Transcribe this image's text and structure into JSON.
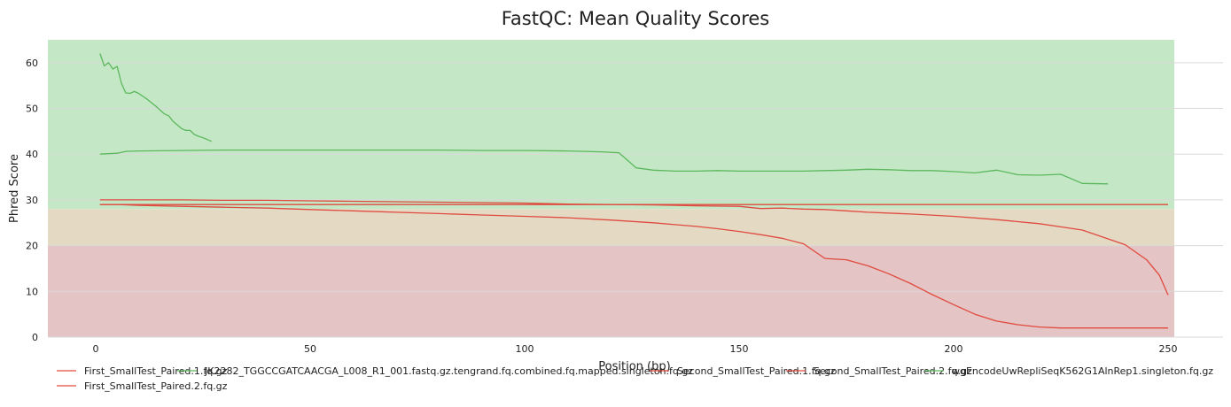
{
  "chart_data": {
    "type": "line",
    "title": "FastQC: Mean Quality Scores",
    "xlabel": "Position (bp)",
    "ylabel": "Phred Score",
    "xlim": [
      -10,
      252
    ],
    "ylim": [
      0,
      65
    ],
    "xticks": [
      "0",
      "50",
      "100",
      "150",
      "200",
      "250"
    ],
    "yticks": [
      "0",
      "10",
      "20",
      "30",
      "40",
      "50",
      "60"
    ],
    "grid": true,
    "legend_position": "bottom",
    "bands": [
      {
        "from": 28,
        "to": 65,
        "color": "#c4e7c6"
      },
      {
        "from": 20,
        "to": 28,
        "color": "#e4dac4"
      },
      {
        "from": 0,
        "to": 20,
        "color": "#e4c4c4"
      }
    ],
    "series": [
      {
        "name": "First_SmallTest_Paired.1.fq.gz",
        "color": "#e04a3f",
        "x": [
          1,
          5,
          10,
          20,
          30,
          40,
          50,
          60,
          70,
          80,
          90,
          100,
          110,
          120,
          130,
          140,
          150,
          155,
          160,
          165,
          170,
          175,
          180,
          190,
          200,
          210,
          220,
          230,
          240,
          245,
          248,
          250
        ],
        "y": [
          30.0,
          30.0,
          30.0,
          30.0,
          29.9,
          29.9,
          29.8,
          29.7,
          29.6,
          29.5,
          29.4,
          29.3,
          29.1,
          29.0,
          28.9,
          28.7,
          28.6,
          28.1,
          28.2,
          28.0,
          27.9,
          27.6,
          27.3,
          26.9,
          26.4,
          25.7,
          24.8,
          23.4,
          20.2,
          16.9,
          13.5,
          9.2
        ]
      },
      {
        "name": "JK2282_TGGCCGATCAACGA_L008_R1_001.fastq.gz.tengrand.fq.combined.fq.mapped.singleton.fq.gz",
        "color": "#5cb85c",
        "x": [
          1,
          2,
          3,
          4,
          5,
          6,
          7,
          8,
          9,
          10,
          12,
          14,
          16,
          17,
          18,
          19,
          20,
          21,
          22,
          23,
          24,
          25,
          26,
          27
        ],
        "y": [
          62.0,
          59.3,
          60.0,
          58.6,
          59.2,
          55.5,
          53.4,
          53.3,
          53.7,
          53.3,
          52.0,
          50.5,
          48.8,
          48.4,
          47.2,
          46.4,
          45.6,
          45.2,
          45.2,
          44.3,
          43.9,
          43.6,
          43.2,
          42.8
        ]
      },
      {
        "name": "Second_SmallTest_Paired.1.fq.gz",
        "color": "#e04a3f",
        "x": [
          1,
          5,
          10,
          20,
          30,
          40,
          50,
          60,
          70,
          80,
          90,
          100,
          110,
          120,
          130,
          140,
          145,
          150,
          155,
          160,
          165,
          170,
          175,
          180,
          185,
          190,
          195,
          200,
          205,
          210,
          215,
          220,
          225,
          230,
          235,
          240,
          245,
          250
        ],
        "y": [
          29.0,
          29.0,
          28.8,
          28.6,
          28.4,
          28.2,
          27.9,
          27.6,
          27.3,
          27.0,
          26.7,
          26.4,
          26.1,
          25.6,
          25.0,
          24.2,
          23.7,
          23.1,
          22.4,
          21.6,
          20.4,
          17.2,
          16.9,
          15.6,
          13.8,
          11.7,
          9.3,
          7.1,
          5.0,
          3.5,
          2.7,
          2.2,
          2.0,
          2.0,
          2.0,
          2.0,
          2.0,
          2.0
        ]
      },
      {
        "name": "Second_SmallTest_Paired.2.fq.gz",
        "color": "#e04a3f",
        "x": [
          1,
          250
        ],
        "y": [
          29.0,
          29.0
        ]
      },
      {
        "name": "wgEncodeUwRepliSeqK562G1AlnRep1.singleton.fq.gz",
        "color": "#5cb85c",
        "x": [
          1,
          3,
          5,
          7,
          10,
          20,
          30,
          40,
          50,
          60,
          70,
          80,
          90,
          100,
          110,
          118,
          122,
          126,
          130,
          135,
          140,
          145,
          150,
          155,
          160,
          165,
          170,
          175,
          180,
          185,
          190,
          195,
          200,
          205,
          210,
          215,
          220,
          225,
          230,
          236
        ],
        "y": [
          40.0,
          40.1,
          40.2,
          40.6,
          40.7,
          40.8,
          40.9,
          40.9,
          40.9,
          40.9,
          40.9,
          40.9,
          40.8,
          40.8,
          40.7,
          40.5,
          40.3,
          37.0,
          36.5,
          36.3,
          36.3,
          36.4,
          36.3,
          36.3,
          36.3,
          36.3,
          36.4,
          36.5,
          36.7,
          36.6,
          36.4,
          36.4,
          36.2,
          35.9,
          36.5,
          35.5,
          35.4,
          35.6,
          33.6,
          33.5
        ]
      },
      {
        "name": "First_SmallTest_Paired.2.fq.gz",
        "color": "#e04a3f",
        "x": [
          1,
          250
        ],
        "y": [
          29.0,
          29.0
        ]
      }
    ]
  }
}
